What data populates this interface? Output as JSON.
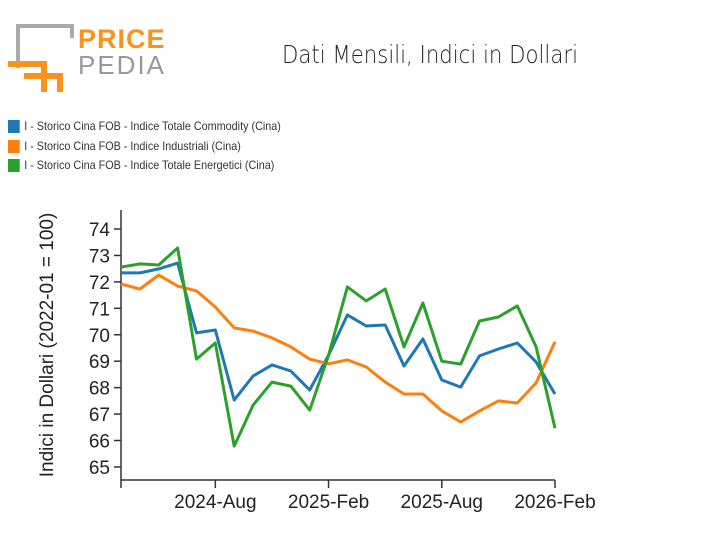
{
  "logo": {
    "line1": "PRICE",
    "line2": "PEDIA"
  },
  "chart_data": {
    "type": "line",
    "title": "Dati Mensili, Indici in Dollari",
    "ylabel": "Indici in Dollari (2022-01 = 100)",
    "xlabel": "",
    "ylim": [
      64.5,
      74.8
    ],
    "yticks": [
      65,
      66,
      67,
      68,
      69,
      70,
      71,
      72,
      73,
      74
    ],
    "x": [
      "2024-Mar",
      "2024-Apr",
      "2024-May",
      "2024-Jun",
      "2024-Jul",
      "2024-Aug",
      "2024-Sep",
      "2024-Oct",
      "2024-Nov",
      "2024-Dec",
      "2025-Jan",
      "2025-Feb",
      "2025-Mar",
      "2025-Apr",
      "2025-May",
      "2025-Jun",
      "2025-Jul",
      "2025-Aug",
      "2025-Sep",
      "2025-Oct",
      "2025-Nov",
      "2025-Dec",
      "2026-Jan",
      "2026-Feb"
    ],
    "xticks": [
      "2024-Aug",
      "2025-Feb",
      "2025-Aug",
      "2026-Feb"
    ],
    "grid": false,
    "legend_placement": "top-left",
    "series": [
      {
        "name": "I - Storico Cina FOB - Indice Totale Commodity (Cina)",
        "color": "#1f77b4",
        "values": [
          72.34,
          72.34,
          72.49,
          72.71,
          70.07,
          70.18,
          67.53,
          68.44,
          68.86,
          68.63,
          67.91,
          69.23,
          70.75,
          70.33,
          70.37,
          68.82,
          69.84,
          68.29,
          68.02,
          69.2,
          69.46,
          69.69,
          68.97,
          67.76
        ]
      },
      {
        "name": "I - Storico Cina FOB - Indice Industriali (Cina)",
        "color": "#ff7f0e",
        "values": [
          71.92,
          71.73,
          72.26,
          71.84,
          71.66,
          71.05,
          70.26,
          70.14,
          69.88,
          69.54,
          69.08,
          68.9,
          69.05,
          68.78,
          68.21,
          67.76,
          67.76,
          67.12,
          66.7,
          67.12,
          67.5,
          67.42,
          68.18,
          69.73
        ]
      },
      {
        "name": "I - Storico Cina FOB - Indice Totale Energetici (Cina)",
        "color": "#2ca02c",
        "values": [
          72.56,
          72.68,
          72.64,
          73.28,
          69.08,
          69.69,
          65.79,
          67.34,
          68.21,
          68.06,
          67.15,
          69.23,
          71.81,
          71.28,
          71.73,
          69.54,
          71.2,
          69.0,
          68.89,
          70.52,
          70.67,
          71.09,
          69.54,
          66.47
        ]
      }
    ]
  }
}
